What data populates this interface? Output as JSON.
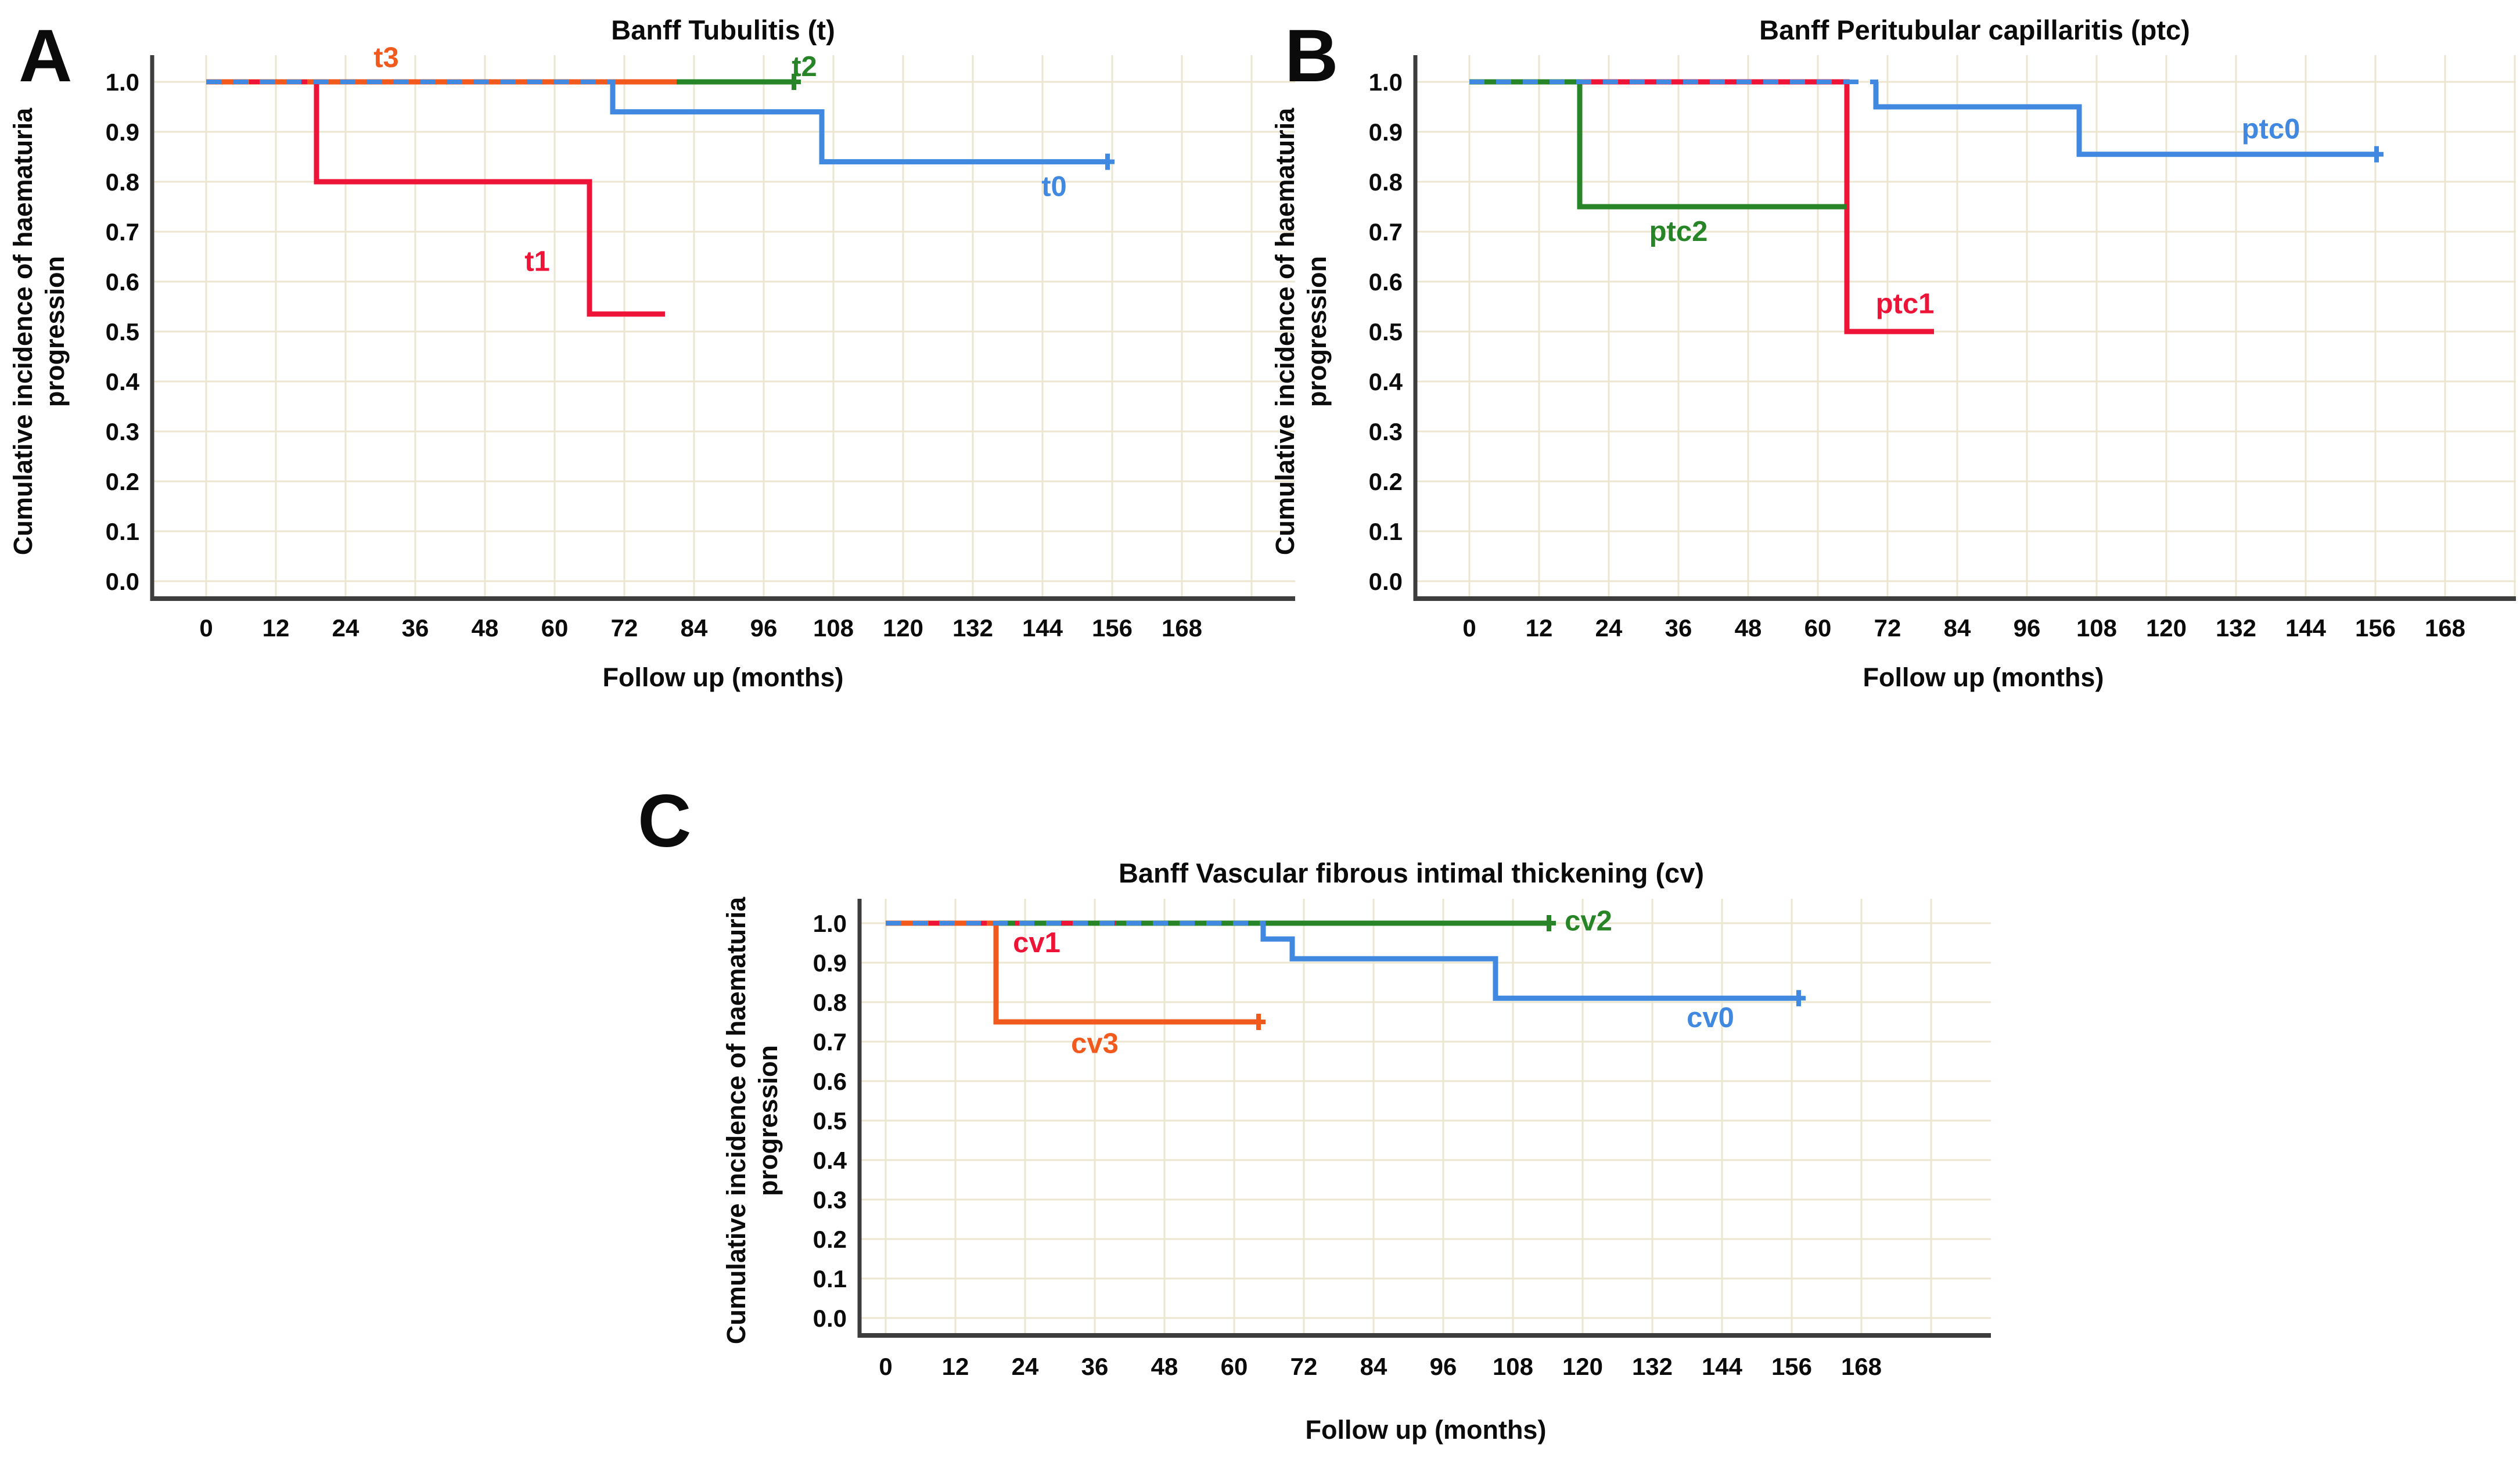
{
  "colors": {
    "blue": "#4189e0",
    "red": "#ee1437",
    "green": "#278427",
    "orange": "#f2591d",
    "grid": "#ece6d0",
    "axis": "#3d3d3d",
    "text": "#0b0b0b"
  },
  "chart_data": [
    {
      "type": "line",
      "panel_label": "A",
      "title": "Banff Tubulitis (t)",
      "xlabel": "Follow up (months)",
      "ylabel": "Cumulative incidence of haematuria progression",
      "ylabel_lines": [
        "Cumulative incidence of haematuria",
        "progression"
      ],
      "x_ticks": [
        0,
        12,
        24,
        36,
        48,
        60,
        72,
        84,
        96,
        108,
        120,
        132,
        144,
        156,
        168
      ],
      "y_ticks": [
        "1.0",
        "0.9",
        "0.8",
        "0.7",
        "0.6",
        "0.5",
        "0.4",
        "0.3",
        "0.2",
        "0.1",
        "0.0"
      ],
      "xlim": [
        0,
        180
      ],
      "ylim": [
        0.0,
        1.05
      ],
      "grid": true,
      "legend": "inline-labels",
      "series": [
        {
          "name": "t2",
          "color_key": "green",
          "steps": [
            [
              0,
              1.0
            ],
            [
              101,
              1.0
            ]
          ],
          "end_tick": true,
          "overlay": {
            "until": 81,
            "dasharray": "14 150"
          },
          "label": {
            "text": "t2",
            "x": 103,
            "y": 1.03
          }
        },
        {
          "name": "t3",
          "color_key": "orange",
          "steps": [
            [
              0,
              1.0
            ],
            [
              81,
              1.0
            ]
          ],
          "end_tick": false,
          "label": {
            "text": "t3",
            "x": 31,
            "y": 1.048
          }
        },
        {
          "name": "t1",
          "color_key": "red",
          "dashed_until": 19,
          "steps": [
            [
              0,
              1.0
            ],
            [
              19,
              1.0
            ],
            [
              19,
              0.8
            ],
            [
              66,
              0.8
            ],
            [
              66,
              0.535
            ],
            [
              79,
              0.535
            ]
          ],
          "end_tick": false,
          "label": {
            "text": "t1",
            "x": 57,
            "y": 0.64
          }
        },
        {
          "name": "t0",
          "color_key": "blue",
          "dashed_until": 70,
          "steps": [
            [
              0,
              1.0
            ],
            [
              70,
              1.0
            ],
            [
              70,
              0.94
            ],
            [
              106,
              0.94
            ],
            [
              106,
              0.84
            ],
            [
              155,
              0.84
            ]
          ],
          "end_tick": true,
          "label": {
            "text": "t0",
            "x": 146,
            "y": 0.79
          }
        }
      ]
    },
    {
      "type": "line",
      "panel_label": "B",
      "title": "Banff Peritubular capillaritis (ptc)",
      "xlabel": "Follow up (months)",
      "ylabel": "Cumulative incidence of haematuria progression",
      "ylabel_lines": [
        "Cumulative incidence of haematuria",
        "progression"
      ],
      "x_ticks": [
        0,
        12,
        24,
        36,
        48,
        60,
        72,
        84,
        96,
        108,
        120,
        132,
        144,
        156,
        168
      ],
      "y_ticks": [
        "1.0",
        "0.9",
        "0.8",
        "0.7",
        "0.6",
        "0.5",
        "0.4",
        "0.3",
        "0.2",
        "0.1",
        "0.0"
      ],
      "xlim": [
        0,
        180
      ],
      "ylim": [
        0.0,
        1.05
      ],
      "grid": true,
      "legend": "inline-labels",
      "series": [
        {
          "name": "ptc1",
          "color_key": "red",
          "steps": [
            [
              0,
              1.0
            ],
            [
              65,
              1.0
            ],
            [
              65,
              0.5
            ],
            [
              80,
              0.5
            ]
          ],
          "end_tick": false,
          "overlay": {
            "until": 19,
            "dasharray": "24 70"
          },
          "label": {
            "text": "ptc1",
            "x": 75,
            "y": 0.555
          }
        },
        {
          "name": "ptc2",
          "color_key": "green",
          "steps": [
            [
              0,
              1.0
            ],
            [
              19,
              1.0
            ],
            [
              19,
              0.75
            ],
            [
              65,
              0.75
            ]
          ],
          "end_tick": false,
          "label": {
            "text": "ptc2",
            "x": 36,
            "y": 0.7
          }
        },
        {
          "name": "ptc0",
          "color_key": "blue",
          "dashed_until": 70,
          "steps": [
            [
              0,
              1.0
            ],
            [
              70,
              1.0
            ],
            [
              70,
              0.95
            ],
            [
              105,
              0.95
            ],
            [
              105,
              0.855
            ],
            [
              156,
              0.855
            ]
          ],
          "end_tick": true,
          "label": {
            "text": "ptc0",
            "x": 138,
            "y": 0.905
          }
        }
      ]
    },
    {
      "type": "line",
      "panel_label": "C",
      "title": "Banff Vascular fibrous intimal thickening (cv)",
      "xlabel": "Follow up (months)",
      "ylabel": "Cumulative incidence of haematuria progression",
      "ylabel_lines": [
        "Cumulative incidence of haematuria",
        "progression"
      ],
      "x_ticks": [
        0,
        12,
        24,
        36,
        48,
        60,
        72,
        84,
        96,
        108,
        120,
        132,
        144,
        156,
        168
      ],
      "y_ticks": [
        "1.0",
        "0.9",
        "0.8",
        "0.7",
        "0.6",
        "0.5",
        "0.4",
        "0.3",
        "0.2",
        "0.1",
        "0.0"
      ],
      "xlim": [
        0,
        180
      ],
      "ylim": [
        0.0,
        1.05
      ],
      "grid": true,
      "legend": "inline-labels",
      "series": [
        {
          "name": "cv2",
          "color_key": "green",
          "steps": [
            [
              0,
              1.0
            ],
            [
              114,
              1.0
            ]
          ],
          "end_tick": true,
          "overlay": {
            "until": 19,
            "dasharray": "14 90"
          },
          "label": {
            "text": "cv2",
            "x": 121,
            "y": 1.005
          }
        },
        {
          "name": "cv3",
          "color_key": "orange",
          "steps": [
            [
              0,
              1.0
            ],
            [
              19,
              1.0
            ],
            [
              19,
              0.75
            ],
            [
              64,
              0.75
            ]
          ],
          "end_tick": true,
          "label": {
            "text": "cv3",
            "x": 36,
            "y": 0.695
          }
        },
        {
          "name": "cv1",
          "color_key": "red",
          "dashed_until": 40,
          "steps": [
            [
              0,
              1.0
            ],
            [
              40,
              1.0
            ]
          ],
          "end_tick": false,
          "label": {
            "text": "cv1",
            "x": 26,
            "y": 0.95
          }
        },
        {
          "name": "cv0",
          "color_key": "blue",
          "dashed_until": 65,
          "steps": [
            [
              0,
              1.0
            ],
            [
              65,
              1.0
            ],
            [
              65,
              0.96
            ],
            [
              70,
              0.96
            ],
            [
              70,
              0.91
            ],
            [
              105,
              0.91
            ],
            [
              105,
              0.81
            ],
            [
              157,
              0.81
            ]
          ],
          "end_tick": true,
          "label": {
            "text": "cv0",
            "x": 142,
            "y": 0.76
          }
        }
      ]
    }
  ]
}
